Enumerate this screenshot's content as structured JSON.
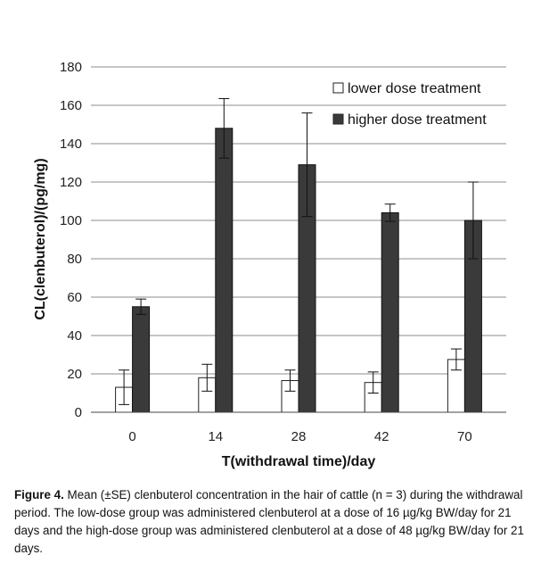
{
  "chart_data": {
    "type": "bar",
    "xlabel": "T(withdrawal time)/day",
    "ylabel": "CL(clenbuterol)/(pg/mg)",
    "ylim": [
      0,
      180
    ],
    "yticks": [
      0,
      20,
      40,
      60,
      80,
      100,
      120,
      140,
      160,
      180
    ],
    "grid": true,
    "legend_position": "top-right",
    "categories": [
      "0",
      "14",
      "28",
      "42",
      "70"
    ],
    "series": [
      {
        "name": "lower dose treatment",
        "color": "#ffffff",
        "values": [
          13,
          18,
          16.5,
          15.5,
          27.5
        ],
        "error": [
          9,
          7,
          5.5,
          5.5,
          5.5
        ]
      },
      {
        "name": "higher dose treatment",
        "color": "#3a3a3a",
        "values": [
          55,
          148,
          129,
          104,
          100
        ],
        "error": [
          4,
          15.5,
          27,
          4.5,
          20
        ]
      }
    ]
  },
  "caption": {
    "label": "Figure 4.",
    "text": "Mean (±SE) clenbuterol concentration in the hair of cattle (n = 3) during the withdrawal period. The low-dose group was administered clenbuterol at a dose of 16 µg/kg BW/day for 21 days and the high-dose group was administered clenbuterol at a dose of 48 µg/kg BW/day for 21 days."
  }
}
